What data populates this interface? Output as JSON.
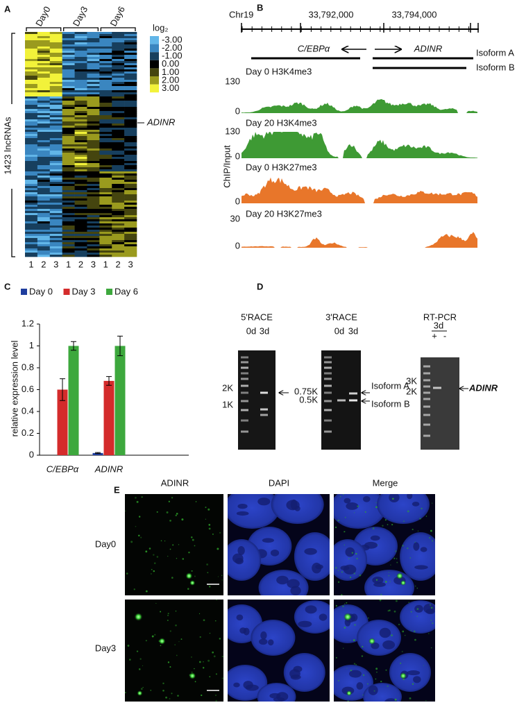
{
  "panels": {
    "A": {
      "label": "A",
      "columns": [
        "Day0",
        "Day3",
        "Day6"
      ],
      "samples": [
        "1",
        "2",
        "3",
        "1",
        "2",
        "3",
        "1",
        "2",
        "3"
      ],
      "row_label": "1423 lncRNAs",
      "highlight": "ADINR",
      "legend_title": "log₂",
      "legend_labels": [
        "-3.00",
        "-2.00",
        "-1.00",
        "0.00",
        "1.00",
        "2.00",
        "3.00"
      ]
    },
    "B": {
      "label": "B",
      "chromosome": "Chr19",
      "coordinates": [
        "33,792,000",
        "33,794,000"
      ],
      "genes": [
        "C/EBPα",
        "ADINR"
      ],
      "isoforms": [
        "Isoform A",
        "Isoform B"
      ],
      "y_label": "ChIP/Input",
      "tracks": [
        {
          "name": "Day 0 H3K4me3",
          "max": "130",
          "min": "0"
        },
        {
          "name": "Day 20 H3K4me3",
          "max": "130",
          "min": "0"
        },
        {
          "name": "Day 0 H3K27me3",
          "min": "0"
        },
        {
          "name": "Day 20 H3K27me3",
          "max": "30",
          "min": "0"
        }
      ]
    },
    "C": {
      "label": "C"
    },
    "D": {
      "label": "D",
      "gels": [
        {
          "title": "5'RACE",
          "lanes": [
            "0d",
            "3d"
          ],
          "sizes": [
            "2K",
            "1K"
          ]
        },
        {
          "title": "3'RACE",
          "lanes": [
            "0d",
            "3d"
          ],
          "sizes": [
            "0.75K",
            "0.5K"
          ],
          "bands": [
            "Isoform A",
            "Isoform B"
          ]
        },
        {
          "title": "RT-PCR",
          "lanes": [
            "3d"
          ],
          "conditions": [
            "+",
            "-"
          ],
          "sizes": [
            "3K",
            "2K"
          ],
          "bands": [
            "ADINR"
          ]
        }
      ]
    },
    "E": {
      "label": "E",
      "columns": [
        "ADINR",
        "DAPI",
        "Merge"
      ],
      "rows": [
        "Day0",
        "Day3"
      ]
    }
  },
  "chart_data": {
    "type": "bar",
    "categories": [
      "C/EBPα",
      "ADINR"
    ],
    "series": [
      {
        "name": "Day 0",
        "color": "#1f3d9e",
        "values": [
          0,
          0.02
        ],
        "errors": [
          0,
          0.005
        ]
      },
      {
        "name": "Day 3",
        "color": "#d42b2b",
        "values": [
          0.6,
          0.68
        ],
        "errors": [
          0.1,
          0.04
        ]
      },
      {
        "name": "Day 6",
        "color": "#3da83d",
        "values": [
          1,
          1
        ],
        "errors": [
          0.04,
          0.09
        ]
      }
    ],
    "y_label": "relative expression level",
    "ylim": [
      0,
      1.2
    ],
    "yticks": [
      0,
      0.2,
      0.4,
      0.6,
      0.8,
      1,
      1.2
    ]
  }
}
